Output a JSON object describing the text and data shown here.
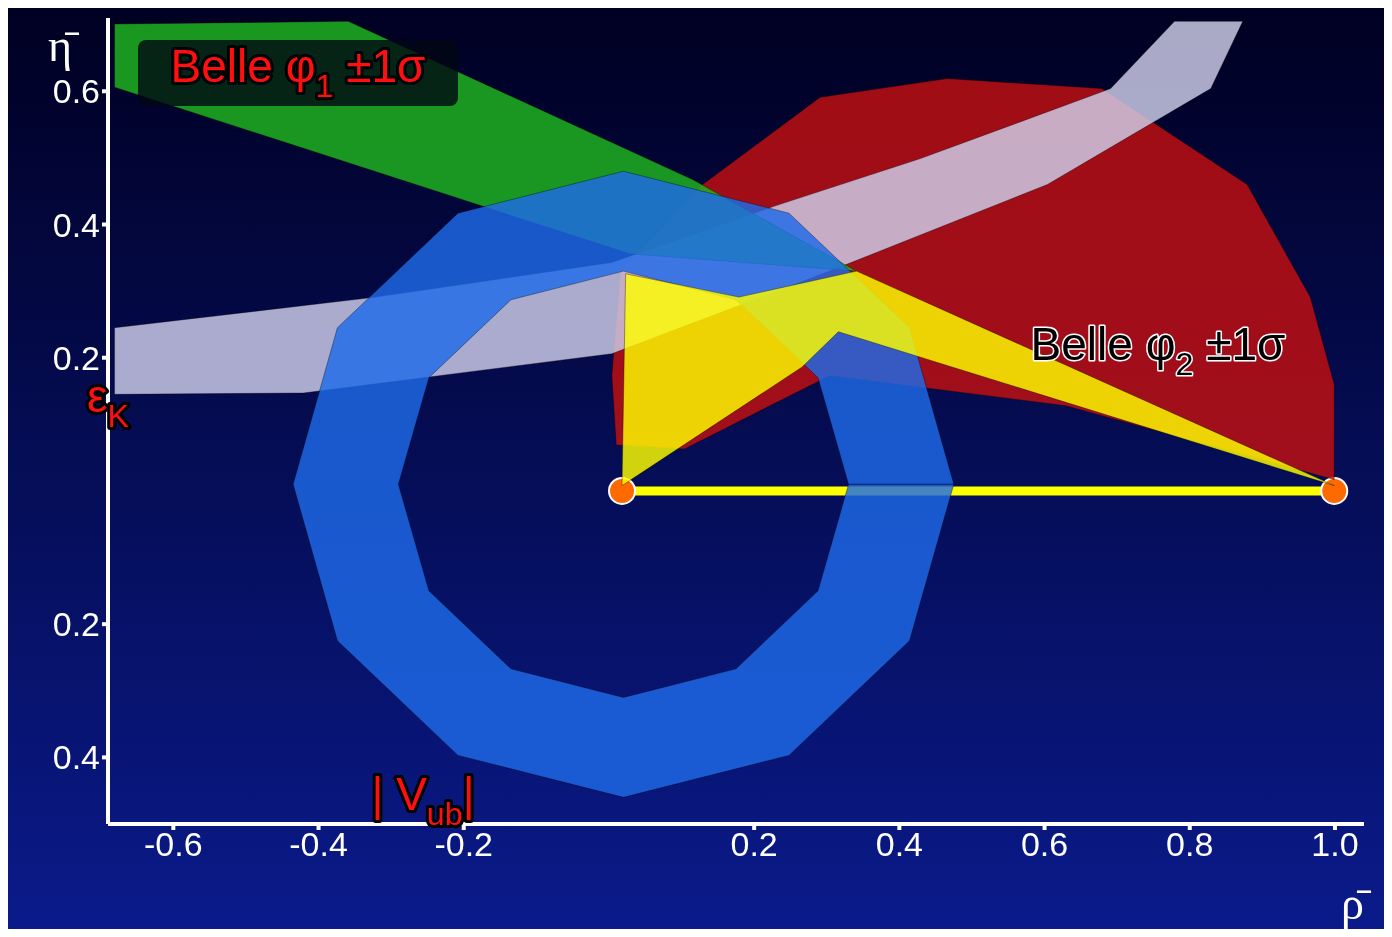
{
  "chart_data": {
    "type": "area",
    "xlabel": "ρ̄",
    "ylabel": "η̄",
    "xlim": [
      -0.69,
      1.04
    ],
    "ylim": [
      -0.5,
      0.71
    ],
    "xticks": [
      -0.6,
      -0.4,
      -0.2,
      0.2,
      0.4,
      0.6,
      0.8,
      {
        "value": 1,
        "label": "1.0"
      }
    ],
    "yticks": [
      {
        "value": -0.4,
        "label": "0.4"
      },
      {
        "value": -0.2,
        "label": "0.2"
      },
      0.2,
      0.4,
      0.6
    ],
    "series": [
      {
        "type": "scatter",
        "color": "#ff6a00",
        "marker": "circle",
        "x": [
          0.018,
          0.999
        ],
        "values": [
          0,
          0
        ]
      },
      {
        "color": "#c41010",
        "x": [
          0.004,
          0.016,
          0.129,
          0.291,
          0.466,
          0.679,
          0.879,
          0.966,
          0.999,
          0.999,
          0.629,
          0.304,
          0.104,
          0.01
        ],
        "values": [
          0.173,
          0.33,
          0.46,
          0.591,
          0.619,
          0.604,
          0.46,
          0.291,
          0.16,
          0.017,
          0.128,
          0.173,
          0.063,
          0.069
        ]
      },
      {
        "color": "#d0d0ec",
        "x": [
          -0.681,
          -0.421,
          0.004,
          0.304,
          0.604,
          0.829,
          0.873,
          0.779,
          0.691,
          0.429,
          0.229,
          0.004,
          -0.321,
          -0.681
        ],
        "values": [
          0.145,
          0.147,
          0.206,
          0.33,
          0.46,
          0.604,
          0.705,
          0.705,
          0.604,
          0.499,
          0.428,
          0.343,
          0.291,
          0.245
        ]
      },
      {
        "color": "#1fb81f",
        "x": [
          -0.681,
          -0.359,
          0.116,
          0.341,
          0.029,
          -0.681
        ],
        "values": [
          0.701,
          0.705,
          0.467,
          0.33,
          0.356,
          0.606
        ]
      },
      {
        "color": "#1e6ae8",
        "x": [
          0.475,
          0.414,
          0.248,
          0.02,
          -0.208,
          -0.374,
          -0.435,
          -0.374,
          -0.208,
          0.02,
          0.248,
          0.414,
          0.475,
          0.33,
          0.288,
          0.175,
          0.02,
          -0.135,
          -0.248,
          -0.29,
          -0.248,
          -0.135,
          0.02,
          0.175,
          0.288,
          0.33
        ],
        "values": [
          0.01,
          0.245,
          0.417,
          0.48,
          0.417,
          0.245,
          0.01,
          -0.225,
          -0.397,
          -0.46,
          -0.397,
          -0.225,
          0.01,
          0.01,
          -0.15,
          -0.267,
          -0.31,
          -0.267,
          -0.15,
          0.01,
          0.17,
          0.287,
          0.33,
          0.287,
          0.17,
          0.01
        ]
      },
      {
        "color": "#ffff00",
        "x": [
          0.018,
          0.023,
          0.179,
          0.341,
          0.999,
          0.316,
          0.266
        ],
        "values": [
          0.008,
          0.326,
          0.291,
          0.33,
          0.008,
          0.239,
          0.186
        ]
      },
      {
        "type": "line",
        "color": "#ffff00",
        "x": [
          0.018,
          0.5,
          0.999
        ],
        "values": [
          0,
          0,
          0
        ]
      }
    ],
    "annotations": [
      "Belle φ$_{1}$ ±1σ",
      "ε$_{K}$",
      "Belle φ$_{2}$ ±1σ",
      "| V$_{ub}$|"
    ]
  }
}
